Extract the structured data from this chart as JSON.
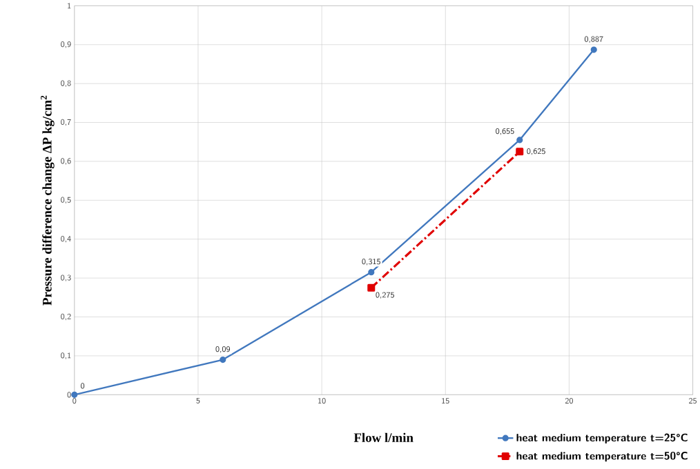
{
  "chart_data": {
    "type": "line",
    "xlabel": "Flow l/min",
    "ylabel": "Pressure difference change ΔP kg/cm$^{2}$",
    "xlim": [
      0,
      25
    ],
    "xticks": [
      0,
      5,
      10,
      15,
      20,
      25
    ],
    "ylim": [
      0,
      1
    ],
    "yticks": [
      0,
      {
        "value": 0.1,
        "label": "0,1"
      },
      {
        "value": 0.2,
        "label": "0,2"
      },
      {
        "value": 0.3,
        "label": "0,3"
      },
      {
        "value": 0.4,
        "label": "0,4"
      },
      {
        "value": 0.5,
        "label": "0,5"
      },
      {
        "value": 0.6,
        "label": "0,6"
      },
      {
        "value": 0.7,
        "label": "0,7"
      },
      {
        "value": 0.8,
        "label": "0,8"
      },
      {
        "value": 0.9,
        "label": "0,9"
      },
      1
    ],
    "grid": true,
    "legend": "bottom right",
    "series": [
      {
        "name": "heat medium temperature t=25°C",
        "color": "#4178be",
        "marker": "circle",
        "line_style": "solid",
        "x": [
          0,
          6,
          12,
          18,
          21
        ],
        "values": [
          0,
          0.09,
          0.315,
          0.655,
          0.887
        ],
        "value_labels": [
          "0",
          "0,09",
          "0,315",
          "0,655",
          "0,887"
        ]
      },
      {
        "name": "heat medium temperature t=50°C",
        "color": "#e00000",
        "marker": "square",
        "line_style": "dashdot",
        "x": [
          12,
          18
        ],
        "values": [
          0.275,
          0.625
        ],
        "value_labels": [
          "0,275",
          "0,625"
        ]
      }
    ]
  }
}
